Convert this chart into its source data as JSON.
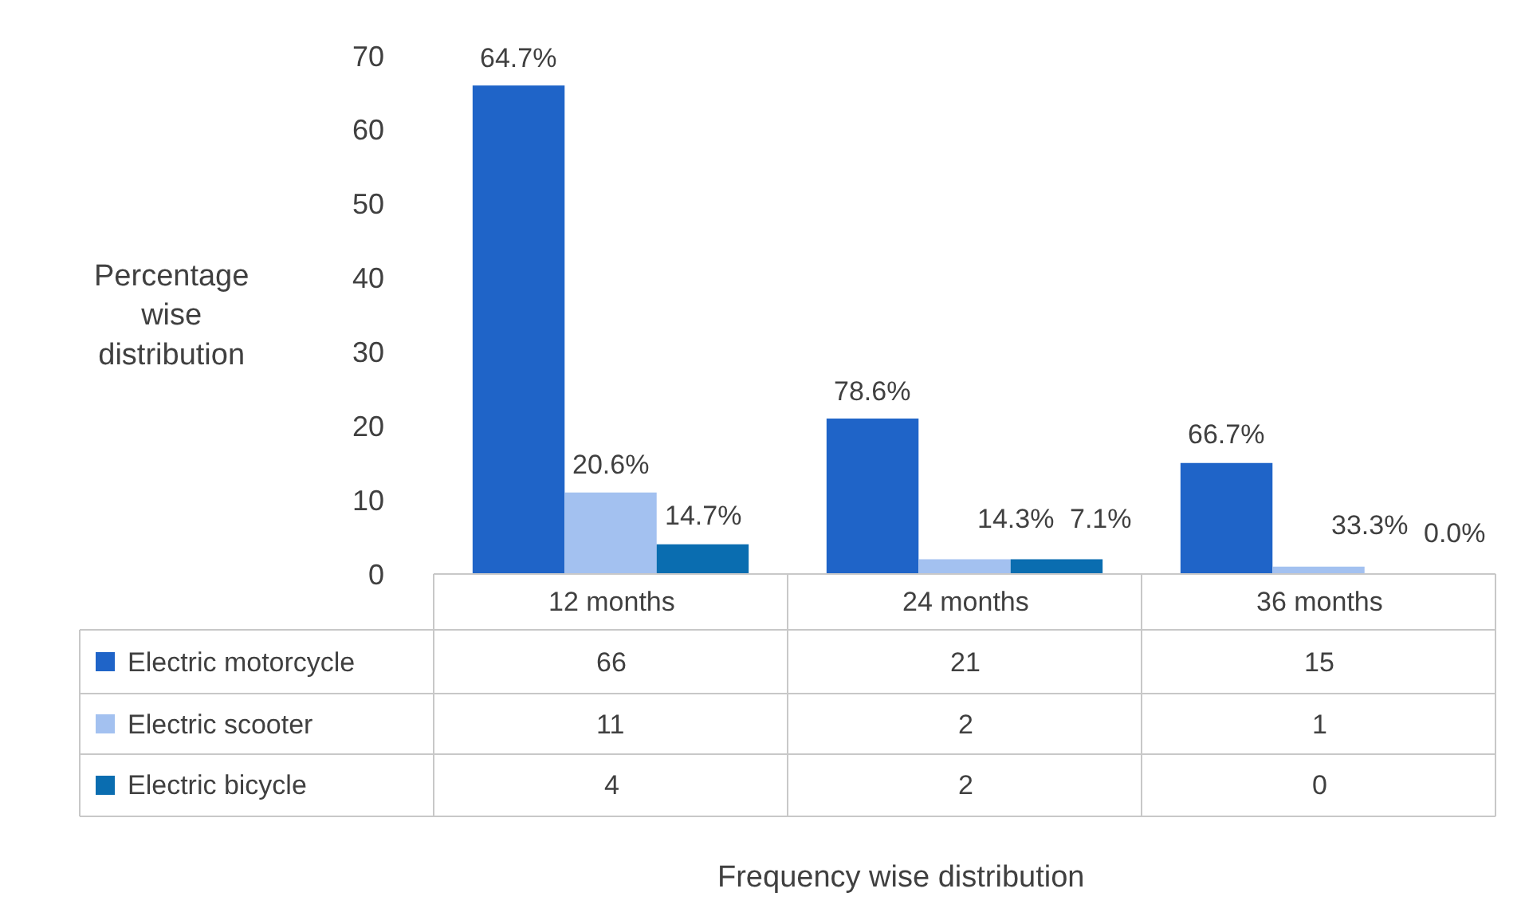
{
  "chart_data": {
    "type": "bar",
    "ylabel": "Percentage wise distribution",
    "categories": [
      "12 months",
      "24 months",
      "36 months"
    ],
    "series": [
      {
        "name": "Electric motorcycle",
        "color": "#1f64c8",
        "values": [
          66,
          21,
          15
        ],
        "value_labels": [
          "66",
          "21",
          "15"
        ]
      },
      {
        "name": "Electric scooter",
        "color": "#a3c1f0",
        "values": [
          11,
          2,
          1
        ],
        "value_labels": [
          "11",
          "2",
          "1"
        ]
      },
      {
        "name": "Electric bicycle",
        "color": "#0a6db0",
        "values": [
          4,
          2,
          0
        ],
        "value_labels": [
          "4",
          "2",
          "0"
        ]
      }
    ],
    "annotations": [
      "64.7%",
      "20.6%",
      "14.7%",
      "78.6%",
      "14.3%",
      "7.1%",
      "66.7%",
      "33.3%",
      "0.0%",
      "Frequency wise distribution"
    ],
    "data_labels": true,
    "ylim": [
      0,
      70
    ],
    "yticks": [
      0,
      10,
      20,
      30,
      40,
      50,
      60,
      70
    ],
    "legend": "bottom"
  }
}
